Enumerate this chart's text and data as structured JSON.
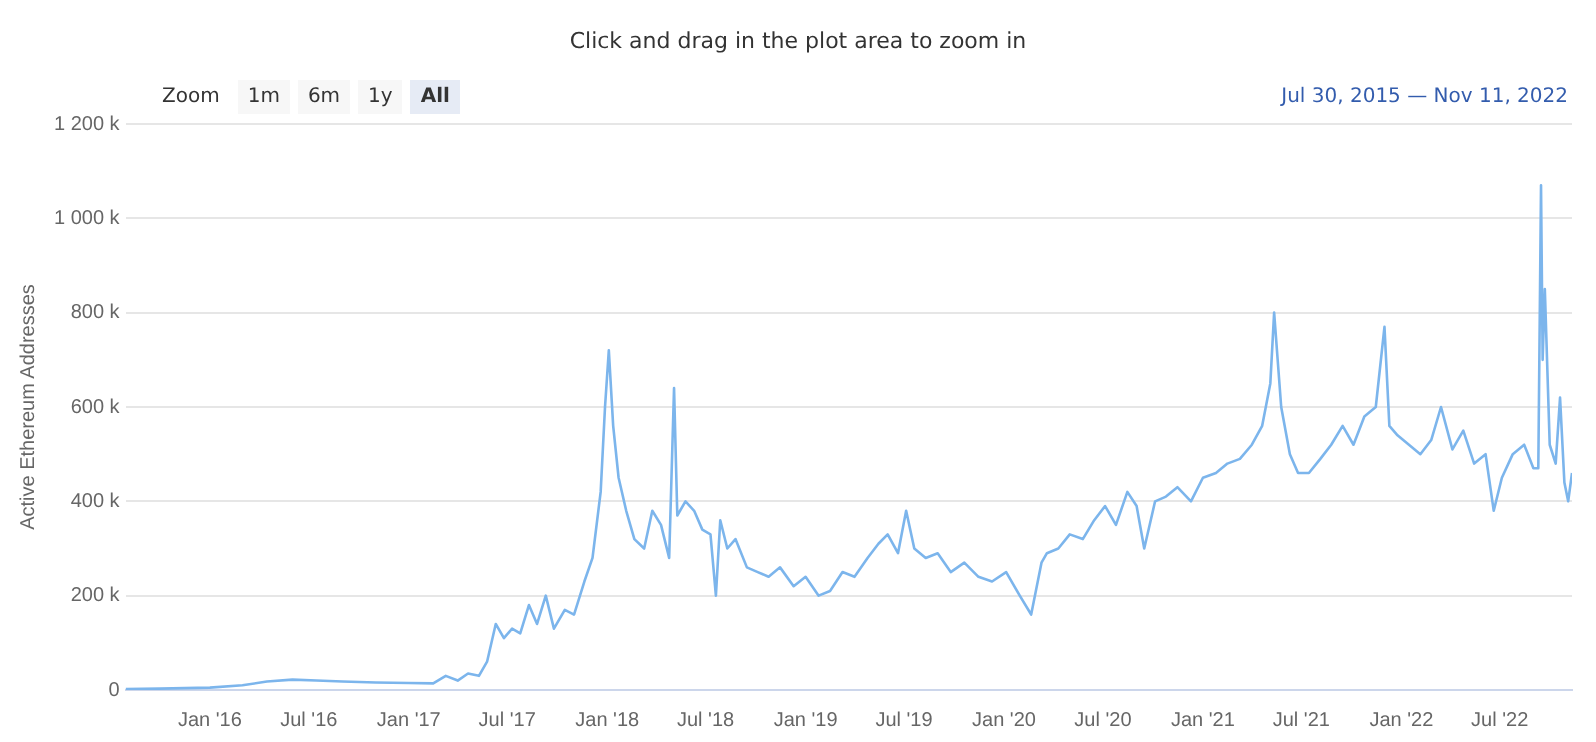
{
  "chart_data": {
    "type": "line",
    "subtitle": "Click and drag in the plot area to zoom in",
    "ylabel": "Active Ethereum Addresses",
    "annotations": [
      "Zoom",
      "1m",
      "6m",
      "1y",
      "All",
      "Jul 30, 2015 — Nov 11, 2022"
    ],
    "x": [
      "2015-07-30",
      "2015-10-01",
      "2016-01-01",
      "2016-03-01",
      "2016-04-15",
      "2016-06-01",
      "2016-07-15",
      "2016-09-01",
      "2016-11-01",
      "2017-01-01",
      "2017-02-15",
      "2017-03-10",
      "2017-04-01",
      "2017-04-20",
      "2017-05-10",
      "2017-05-25",
      "2017-06-10",
      "2017-06-25",
      "2017-07-10",
      "2017-07-25",
      "2017-08-10",
      "2017-08-25",
      "2017-09-10",
      "2017-09-25",
      "2017-10-15",
      "2017-11-01",
      "2017-11-20",
      "2017-12-05",
      "2017-12-20",
      "2017-12-28",
      "2018-01-04",
      "2018-01-12",
      "2018-01-22",
      "2018-02-05",
      "2018-02-20",
      "2018-03-10",
      "2018-03-25",
      "2018-04-10",
      "2018-04-25",
      "2018-05-04",
      "2018-05-10",
      "2018-05-25",
      "2018-06-10",
      "2018-06-25",
      "2018-07-10",
      "2018-07-20",
      "2018-07-28",
      "2018-08-10",
      "2018-08-25",
      "2018-09-15",
      "2018-10-05",
      "2018-10-25",
      "2018-11-15",
      "2018-12-10",
      "2019-01-01",
      "2019-01-25",
      "2019-02-15",
      "2019-03-10",
      "2019-04-01",
      "2019-04-25",
      "2019-05-15",
      "2019-06-01",
      "2019-06-20",
      "2019-07-05",
      "2019-07-20",
      "2019-08-10",
      "2019-09-01",
      "2019-09-25",
      "2019-10-20",
      "2019-11-15",
      "2019-12-10",
      "2020-01-05",
      "2020-01-30",
      "2020-02-20",
      "2020-03-10",
      "2020-03-20",
      "2020-04-10",
      "2020-05-01",
      "2020-05-25",
      "2020-06-15",
      "2020-07-05",
      "2020-07-25",
      "2020-08-15",
      "2020-09-01",
      "2020-09-15",
      "2020-10-05",
      "2020-10-25",
      "2020-11-15",
      "2020-12-10",
      "2021-01-01",
      "2021-01-25",
      "2021-02-15",
      "2021-03-10",
      "2021-04-01",
      "2021-04-20",
      "2021-05-05",
      "2021-05-12",
      "2021-05-25",
      "2021-06-10",
      "2021-06-25",
      "2021-07-15",
      "2021-08-05",
      "2021-08-25",
      "2021-09-15",
      "2021-10-05",
      "2021-10-25",
      "2021-11-15",
      "2021-12-01",
      "2021-12-10",
      "2021-12-25",
      "2022-01-15",
      "2022-02-05",
      "2022-02-25",
      "2022-03-15",
      "2022-04-05",
      "2022-04-25",
      "2022-05-15",
      "2022-06-05",
      "2022-06-20",
      "2022-07-05",
      "2022-07-25",
      "2022-08-15",
      "2022-09-01",
      "2022-09-10",
      "2022-09-15",
      "2022-09-18",
      "2022-09-22",
      "2022-10-01",
      "2022-10-12",
      "2022-10-20",
      "2022-10-28",
      "2022-11-04",
      "2022-11-11"
    ],
    "series": [
      {
        "color": "#7cb5ec",
        "values": [
          2000,
          3000,
          5000,
          10000,
          18000,
          22000,
          20000,
          18000,
          16000,
          15000,
          14000,
          30000,
          20000,
          35000,
          30000,
          60000,
          140000,
          110000,
          130000,
          120000,
          180000,
          140000,
          200000,
          130000,
          170000,
          160000,
          230000,
          280000,
          420000,
          600000,
          720000,
          560000,
          450000,
          380000,
          320000,
          300000,
          380000,
          350000,
          280000,
          640000,
          370000,
          400000,
          380000,
          340000,
          330000,
          200000,
          360000,
          300000,
          320000,
          260000,
          250000,
          240000,
          260000,
          220000,
          240000,
          200000,
          210000,
          250000,
          240000,
          280000,
          310000,
          330000,
          290000,
          380000,
          300000,
          280000,
          290000,
          250000,
          270000,
          240000,
          230000,
          250000,
          200000,
          160000,
          270000,
          290000,
          300000,
          330000,
          320000,
          360000,
          390000,
          350000,
          420000,
          390000,
          300000,
          400000,
          410000,
          430000,
          400000,
          450000,
          460000,
          480000,
          490000,
          520000,
          560000,
          650000,
          800000,
          600000,
          500000,
          460000,
          460000,
          490000,
          520000,
          560000,
          520000,
          580000,
          600000,
          770000,
          560000,
          540000,
          520000,
          500000,
          530000,
          600000,
          510000,
          550000,
          480000,
          500000,
          380000,
          450000,
          500000,
          520000,
          470000,
          470000,
          1070000,
          700000,
          850000,
          520000,
          480000,
          620000,
          440000,
          400000,
          460000
        ]
      }
    ],
    "xlim": [
      "2015-07-30",
      "2022-11-11"
    ],
    "xticks": [
      {
        "value": "2016-01-01",
        "label": "Jan '16"
      },
      {
        "value": "2016-07-01",
        "label": "Jul '16"
      },
      {
        "value": "2017-01-01",
        "label": "Jan '17"
      },
      {
        "value": "2017-07-01",
        "label": "Jul '17"
      },
      {
        "value": "2018-01-01",
        "label": "Jan '18"
      },
      {
        "value": "2018-07-01",
        "label": "Jul '18"
      },
      {
        "value": "2019-01-01",
        "label": "Jan '19"
      },
      {
        "value": "2019-07-01",
        "label": "Jul '19"
      },
      {
        "value": "2020-01-01",
        "label": "Jan '20"
      },
      {
        "value": "2020-07-01",
        "label": "Jul '20"
      },
      {
        "value": "2021-01-01",
        "label": "Jan '21"
      },
      {
        "value": "2021-07-01",
        "label": "Jul '21"
      },
      {
        "value": "2022-01-01",
        "label": "Jan '22"
      },
      {
        "value": "2022-07-01",
        "label": "Jul '22"
      }
    ],
    "ylim": [
      0,
      1200000
    ],
    "yticks": [
      0,
      {
        "value": 200000,
        "label": "200 k"
      },
      {
        "value": 400000,
        "label": "400 k"
      },
      {
        "value": 600000,
        "label": "600 k"
      },
      {
        "value": 800000,
        "label": "800 k"
      },
      {
        "value": 1000000,
        "label": "1 000 k"
      },
      {
        "value": 1200000,
        "label": "1 200 k"
      }
    ],
    "grid": "y",
    "legend": false,
    "marker": "none",
    "line_style": "solid"
  }
}
